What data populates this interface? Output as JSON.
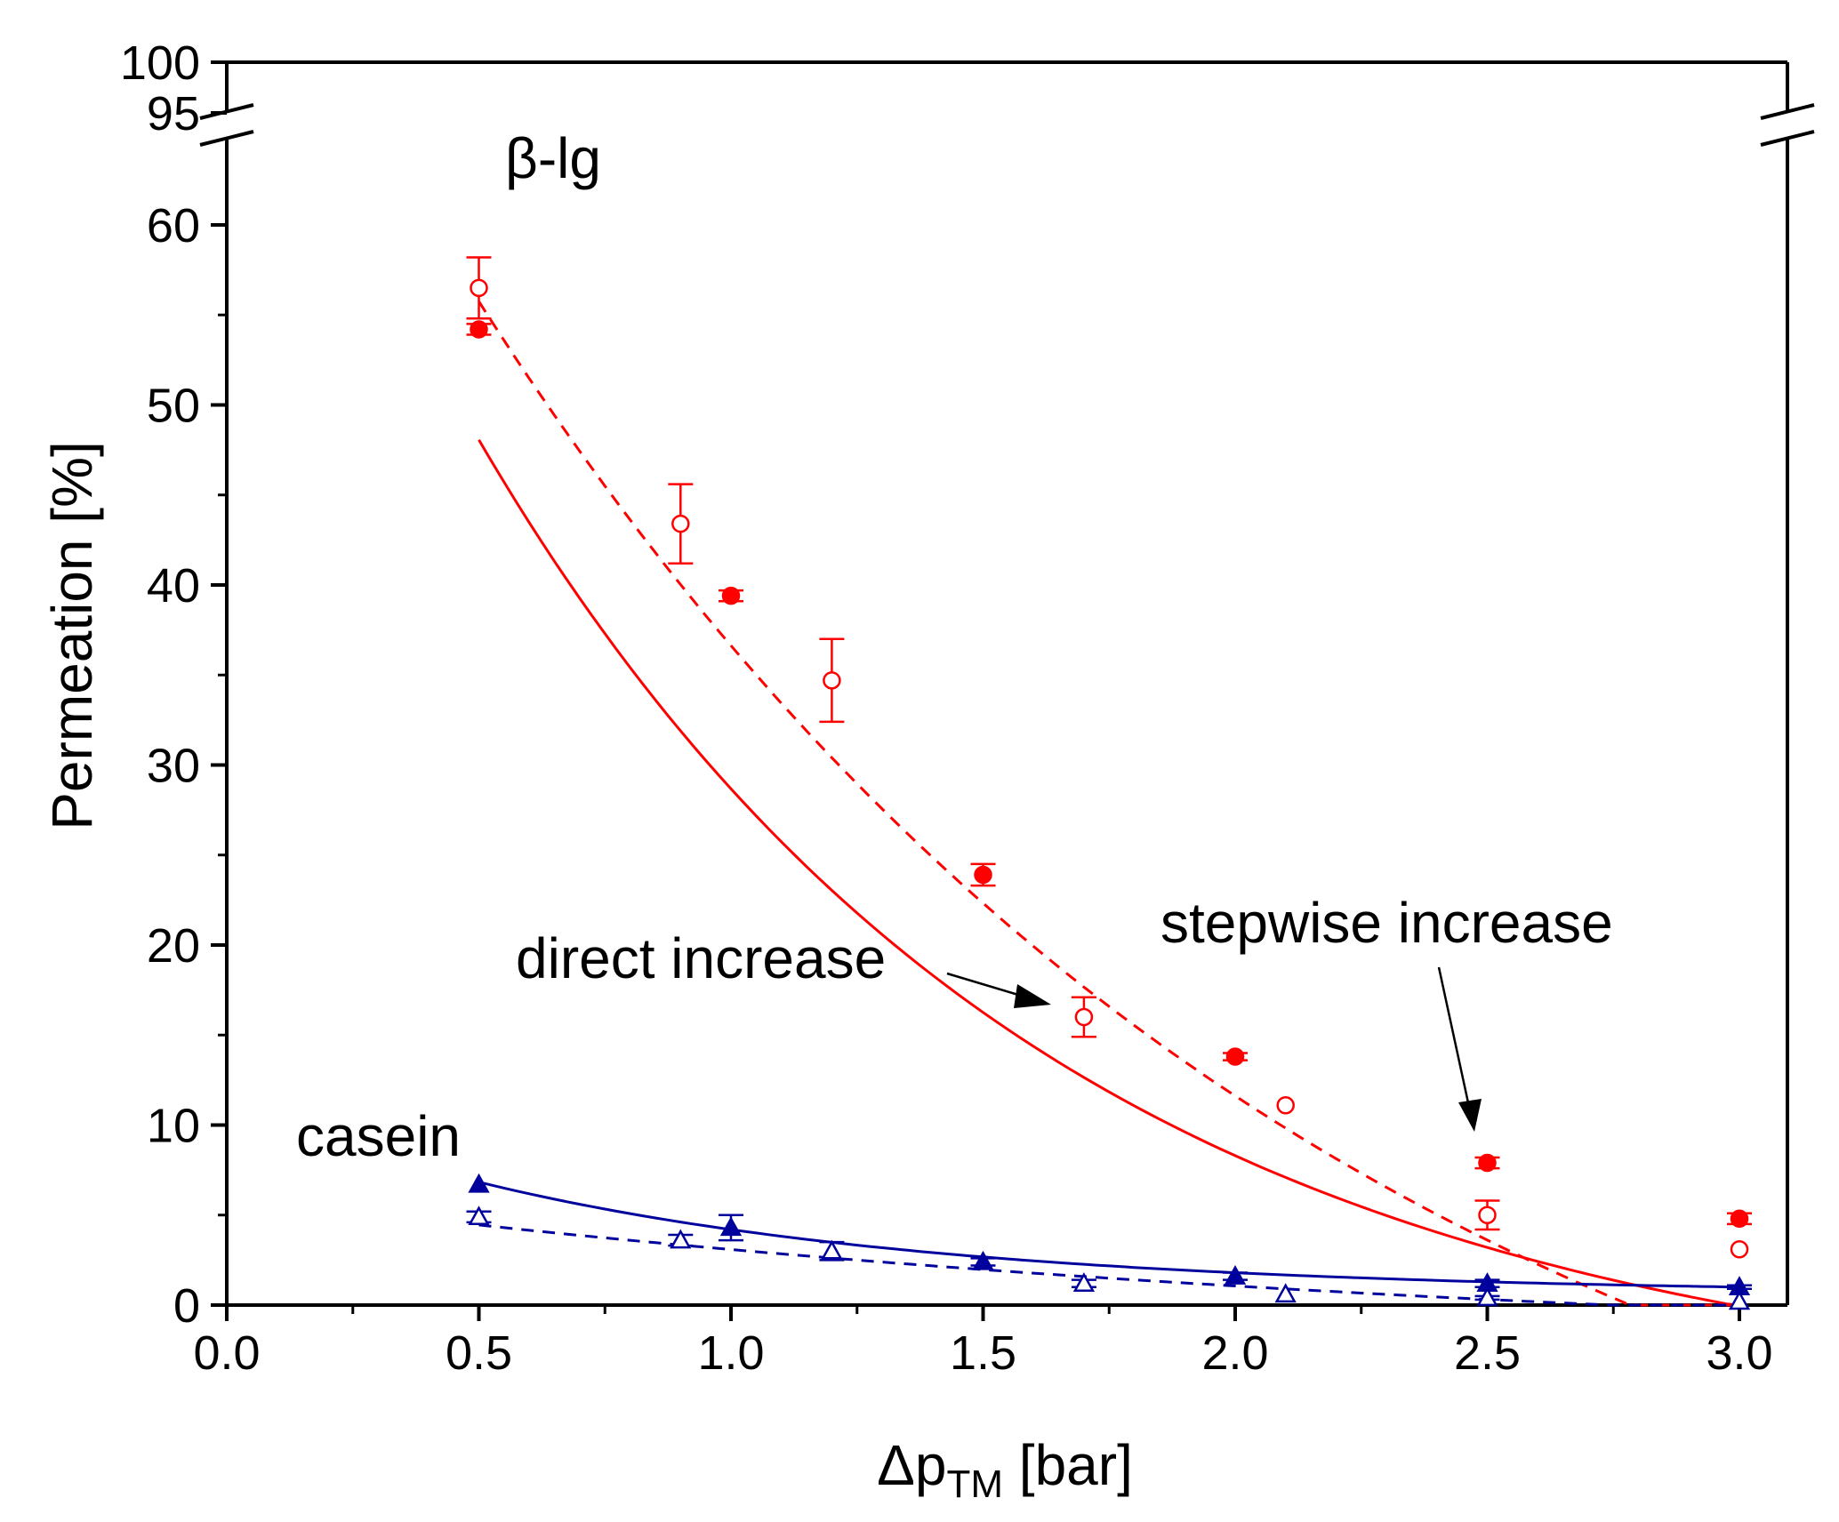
{
  "chart_data": {
    "type": "scatter",
    "xlabel": "Δp",
    "xlabel_sub": "TM",
    "xlabel_unit": " [bar]",
    "ylabel": "Permeation [%]",
    "xlim": [
      0.0,
      3.1
    ],
    "ylim": [
      0,
      60
    ],
    "y_break": {
      "upper_ticks": [
        "100",
        "95"
      ]
    },
    "x_ticks": [
      "0.0",
      "0.5",
      "1.0",
      "1.5",
      "2.0",
      "2.5",
      "3.0"
    ],
    "y_ticks": [
      "0",
      "10",
      "20",
      "30",
      "40",
      "50",
      "60"
    ],
    "grid": false,
    "colors": {
      "beta_lg": "#ff0000",
      "casein": "#00009c"
    },
    "annotations": {
      "beta_lg": "β-lg",
      "casein": "casein",
      "direct": "direct increase",
      "stepwise": "stepwise increase"
    },
    "series": [
      {
        "id": "blg_stepwise",
        "group": "beta_lg",
        "marker": "circle",
        "filled": true,
        "curve": "solid",
        "x": [
          0.5,
          1.0,
          1.5,
          2.0,
          2.5,
          3.0
        ],
        "y": [
          54.2,
          39.4,
          23.9,
          13.8,
          7.9,
          4.8
        ],
        "err": [
          0.3,
          0.3,
          0.6,
          0.2,
          0.3,
          0.3
        ],
        "fit": {
          "a": 84.2,
          "k": 0.89,
          "c": -5.9
        }
      },
      {
        "id": "blg_direct",
        "group": "beta_lg",
        "marker": "circle",
        "filled": false,
        "curve": "dashed",
        "x": [
          0.5,
          0.9,
          1.2,
          1.7,
          2.1,
          2.5,
          3.0
        ],
        "y": [
          56.5,
          43.4,
          34.7,
          16.0,
          11.1,
          5.0,
          3.1
        ],
        "err": [
          1.7,
          2.2,
          2.3,
          1.1,
          0.0,
          0.8,
          0.0
        ],
        "fit": {
          "a": 101.5,
          "k": 0.58,
          "c": -20.2
        }
      },
      {
        "id": "casein_stepwise",
        "group": "casein",
        "marker": "triangle",
        "filled": true,
        "curve": "solid",
        "x": [
          0.5,
          1.0,
          1.5,
          2.0,
          2.5,
          3.0
        ],
        "y": [
          6.7,
          4.3,
          2.4,
          1.6,
          1.2,
          1.0
        ],
        "err": [
          0.0,
          0.7,
          0.2,
          0.2,
          0.2,
          0.1
        ],
        "fit": {
          "a": 10.8,
          "k": 1.1,
          "c": 0.6
        }
      },
      {
        "id": "casein_direct",
        "group": "casein",
        "marker": "triangle",
        "filled": false,
        "curve": "dashed",
        "x": [
          0.5,
          0.9,
          1.2,
          1.7,
          2.1,
          2.5,
          3.0
        ],
        "y": [
          4.9,
          3.6,
          3.0,
          1.2,
          0.6,
          0.4,
          0.2
        ],
        "err": [
          0.3,
          0.3,
          0.5,
          0.2,
          0.0,
          0.1,
          0.0
        ],
        "fit": {
          "a": 9.17,
          "k": 0.4,
          "c": -3.06
        }
      }
    ]
  }
}
